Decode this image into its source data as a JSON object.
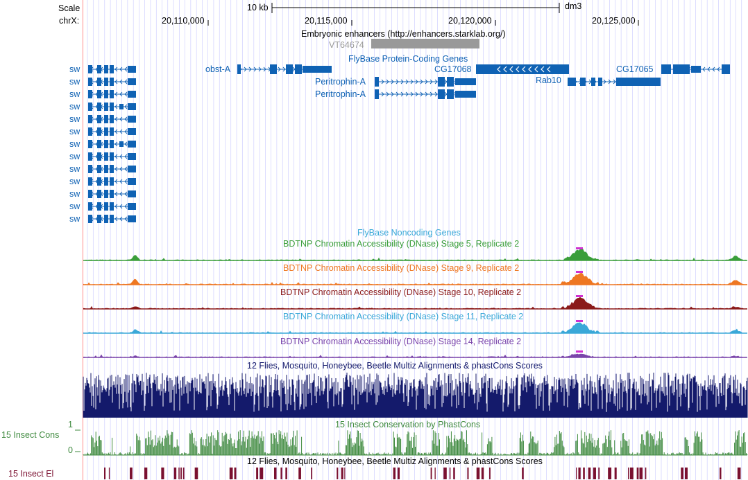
{
  "ruler": {
    "scale_label": "Scale",
    "chrom_label": "chrX:",
    "scale_text": "10 kb",
    "assembly": "dm3",
    "ticks": [
      "20,110,000",
      "20,115,000",
      "20,120,000",
      "20,125,000"
    ]
  },
  "tracks": {
    "enhancers_title": "Embryonic enhancers (http://enhancers.starklab.org/)",
    "enhancer_item": "VT64674",
    "flybase_coding_title": "FlyBase Protein-Coding Genes",
    "genes": {
      "sw": "sw",
      "obst_a": "obst-A",
      "peritrophin_1": "Peritrophin-A",
      "peritrophin_2": "Peritrophin-A",
      "cg17068": "CG17068",
      "rab10": "Rab10",
      "cg17065": "CG17065"
    },
    "flybase_noncoding_title": "FlyBase Noncoding Genes",
    "dnase": [
      {
        "title": "BDTNP Chromatin Accessibility (DNase) Stage 5, Replicate 2",
        "color": "#3a9e3a"
      },
      {
        "title": "BDTNP Chromatin Accessibility (DNase) Stage 9, Replicate 2",
        "color": "#ee7722"
      },
      {
        "title": "BDTNP Chromatin Accessibility (DNase) Stage 10, Replicate 2",
        "color": "#8b1a1a"
      },
      {
        "title": "BDTNP Chromatin Accessibility (DNase) Stage 11, Replicate 2",
        "color": "#3aa8d8"
      },
      {
        "title": "BDTNP Chromatin Accessibility (DNase) Stage 14, Replicate 2",
        "color": "#7a44aa"
      }
    ],
    "multiz_title": "12 Flies, Mosquito, Honeybee, Beetle Multiz Alignments & phastCons Scores",
    "phastcons_title": "15 Insect Conservation by PhastCons",
    "phastcons_side_label": "15 Insect Cons",
    "phastcons_max": "1",
    "phastcons_min": "0",
    "elements_title": "12 Flies, Mosquito, Honeybee, Beetle Multiz Alignments & phastCons Scores",
    "elements_side_label": "15 Insect El"
  },
  "colors": {
    "gene": "#0f62b4",
    "enhancer": "#999999",
    "multiz": "#141a6b",
    "phastcons": "#3f8a3f",
    "elements": "#7a1030",
    "grid": "#c8c8ff",
    "left_edge": "#ff8a8a"
  }
}
